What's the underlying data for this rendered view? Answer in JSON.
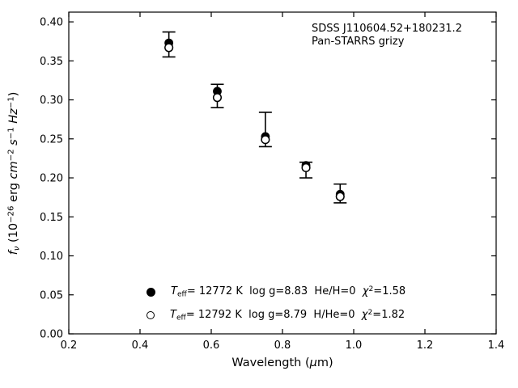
{
  "figure": {
    "background": "#ffffff",
    "axis_color": "#000000",
    "marker_color": "#000000",
    "xlabel_fmt": "Wavelength (*μ*m)",
    "ylabel_fmt": "*f*_{*ν*} (10^{−26} erg *cm*^{−2} *s*^{−1} *Hz*^{−1})",
    "annotation": {
      "line1": "SDSS J110604.52+180231.2",
      "line2": "Pan-STARRS grizy"
    },
    "legend": [
      {
        "marker": "filled-circle",
        "label_fmt": "*T*_{eff}= 12772 K  log g=8.83  He/H=0  *χ*^{2}=1.58"
      },
      {
        "marker": "open-circle",
        "label_fmt": "*T*_{eff}= 12792 K  log g=8.79  H/He=0  *χ*^{2}=1.82"
      }
    ]
  },
  "chart_data": {
    "type": "scatter",
    "title": "",
    "xlabel": "Wavelength (μm)",
    "ylabel": "f_ν (10^−26 erg cm^−2 s^−1 Hz^−1)",
    "annotation": [
      "SDSS J110604.52+180231.2",
      "Pan-STARRS grizy"
    ],
    "xlim": [
      0.2,
      1.4
    ],
    "ylim": [
      0.0,
      0.4125
    ],
    "xticks": [
      0.2,
      0.4,
      0.6,
      0.8,
      1.0,
      1.2,
      1.4
    ],
    "yticks": [
      0.0,
      0.05,
      0.1,
      0.15,
      0.2,
      0.25,
      0.3,
      0.35,
      0.4
    ],
    "grid": false,
    "legend_position": "lower left inside",
    "x": [
      0.481,
      0.617,
      0.752,
      0.866,
      0.962
    ],
    "series": [
      {
        "name": "observed Pan-STARRS grizy photometry",
        "style": "errorbar",
        "values": [
          0.371,
          0.305,
          0.262,
          0.21,
          0.18
        ],
        "errors": [
          0.016,
          0.015,
          0.022,
          0.01,
          0.012
        ]
      },
      {
        "name": "model Teff=12772 K log g=8.83 He/H=0 chi2=1.58",
        "style": "filled-circle",
        "values": [
          0.373,
          0.311,
          0.253,
          0.216,
          0.179
        ]
      },
      {
        "name": "model Teff=12792 K log g=8.79 H/He=0 chi2=1.82",
        "style": "open-circle",
        "values": [
          0.367,
          0.303,
          0.249,
          0.213,
          0.176
        ]
      }
    ]
  }
}
